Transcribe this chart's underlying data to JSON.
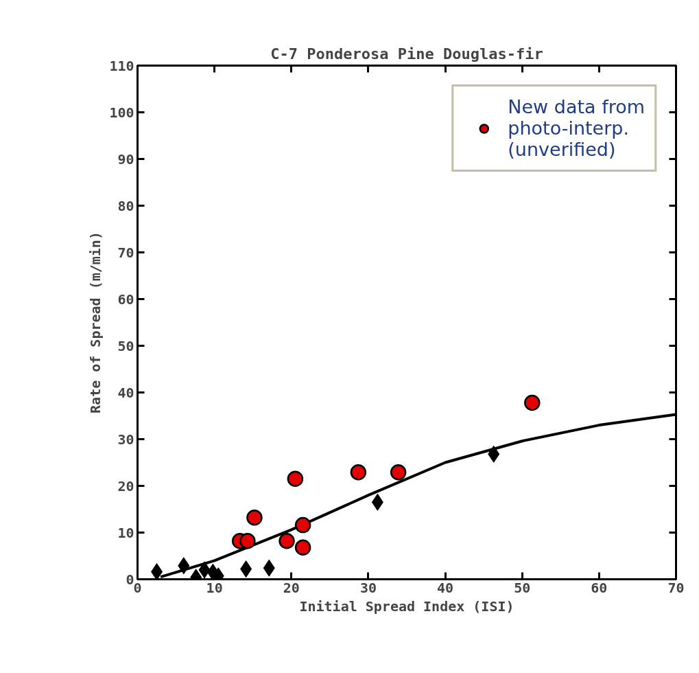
{
  "chart_data": {
    "type": "scatter",
    "title": "C-7 Ponderosa Pine Douglas-fir",
    "xlabel": "Initial Spread Index (ISI)",
    "ylabel": "Rate of Spread (m/min)",
    "xlim": [
      0,
      70
    ],
    "ylim": [
      0,
      110
    ],
    "xticks": [
      0,
      10,
      20,
      30,
      40,
      50,
      60,
      70
    ],
    "yticks": [
      0,
      10,
      20,
      30,
      40,
      50,
      60,
      70,
      80,
      90,
      100,
      110
    ],
    "grid": false,
    "legend": "top right",
    "series": [
      {
        "marker": "diamond",
        "color": "#000000",
        "x": [
          2.5,
          6,
          7.6,
          8.7,
          9.8,
          10.5,
          14.1,
          17.1,
          31.2,
          46.3
        ],
        "values": [
          1.6,
          2.9,
          0.4,
          2,
          1.5,
          0.7,
          2.2,
          2.4,
          16.5,
          26.8
        ]
      },
      {
        "type": "line",
        "color": "#000000",
        "x": [
          3,
          10,
          20,
          30,
          40,
          50,
          60,
          70
        ],
        "values": [
          0.5,
          4,
          10.6,
          18,
          25,
          29.6,
          33,
          35.3
        ]
      },
      {
        "marker": "circle",
        "name": "New data from photo-interp. (unverified)",
        "color": "#e50000",
        "x": [
          13.3,
          14.3,
          15.2,
          19.4,
          20.5,
          21.5,
          21.5,
          28.7,
          33.9,
          51.3
        ],
        "values": [
          8.2,
          8.2,
          13.2,
          8.2,
          21.5,
          11.6,
          6.8,
          22.9,
          22.9,
          37.8
        ]
      }
    ]
  }
}
